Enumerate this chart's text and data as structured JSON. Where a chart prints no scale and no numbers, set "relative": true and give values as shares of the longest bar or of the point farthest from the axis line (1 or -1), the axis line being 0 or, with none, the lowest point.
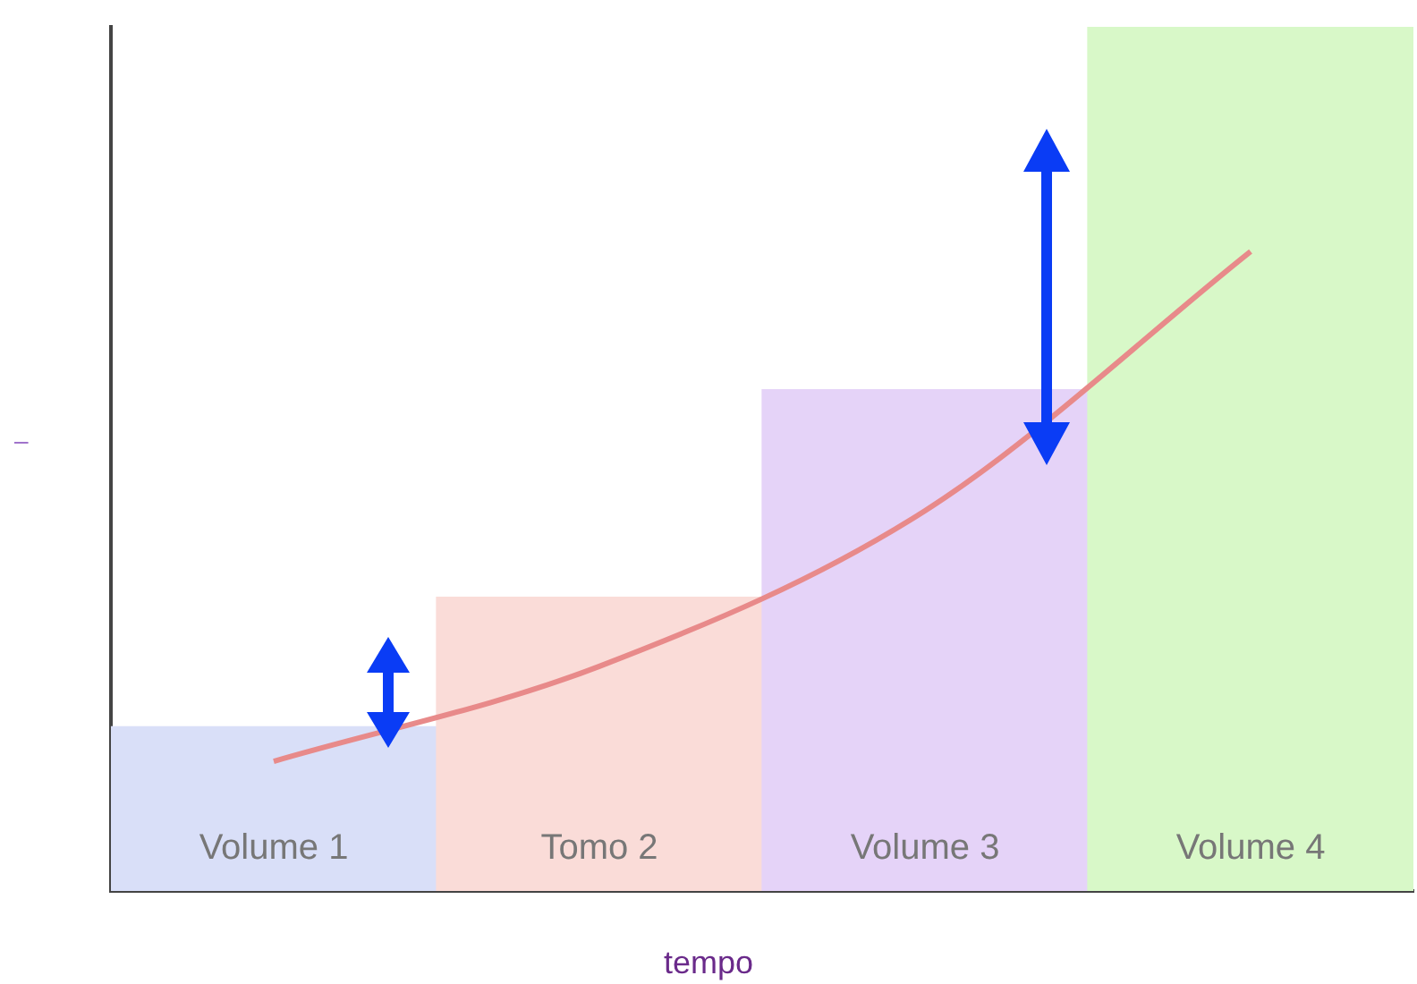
{
  "chart_data": {
    "type": "bar",
    "relative": true,
    "xlabel": "tempo",
    "ylabel": "–",
    "tick_labels": false,
    "grid": false,
    "legend": false,
    "categories": [
      "Volume 1",
      "Tomo 2",
      "Volume 3",
      "Volume 4"
    ],
    "series": [
      {
        "colors": [
          "#d9dff8",
          "#fadcd8",
          "#e5d3f8",
          "#d8f8c8"
        ],
        "values": [
          0.19,
          0.34,
          0.58,
          1.0
        ]
      },
      {
        "type": "line",
        "color": "#e88a8a",
        "marker": "none",
        "values": [
          0.15,
          0.26,
          0.44,
          0.74
        ]
      }
    ]
  }
}
